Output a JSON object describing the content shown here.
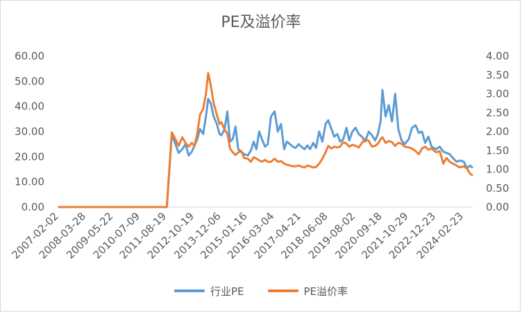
{
  "colors": {
    "series_1": "#5b9bd5",
    "series_2": "#ed7d31",
    "axis": "#d9d9d9",
    "text": "#595959"
  },
  "chart_data": {
    "type": "line",
    "title": "PE及溢价率",
    "xlabel": "",
    "ylabel": "",
    "ylim": [
      0,
      60
    ],
    "y2lim": [
      0,
      4
    ],
    "grid": false,
    "legend_position": "bottom",
    "y_ticks": [
      "0.00",
      "10.00",
      "20.00",
      "30.00",
      "40.00",
      "50.00",
      "60.00"
    ],
    "y2_ticks": [
      "0.00",
      "0.50",
      "1.00",
      "1.50",
      "2.00",
      "2.50",
      "3.00",
      "3.50",
      "4.00"
    ],
    "x_ticks": [
      "2007-02-02",
      "2008-03-28",
      "2009-05-22",
      "2010-07-09",
      "2011-08-19",
      "2012-10-19",
      "2013-12-06",
      "2015-01-16",
      "2016-03-04",
      "2017-04-21",
      "2018-06-08",
      "2019-08-02",
      "2020-09-18",
      "2021-10-29",
      "2022-12-23",
      "2024-02-23"
    ],
    "x": [
      "2007-02-02",
      "2008-03-28",
      "2009-05-22",
      "2010-07-09",
      "2011-08-19",
      "2011-11-04",
      "2011-12-30",
      "2012-02-17",
      "2012-04-13",
      "2012-06-01",
      "2012-07-20",
      "2012-09-07",
      "2012-10-19",
      "2012-11-30",
      "2013-01-11",
      "2013-03-01",
      "2013-04-12",
      "2013-05-17",
      "2013-06-28",
      "2013-08-09",
      "2013-09-27",
      "2013-11-08",
      "2013-12-06",
      "2014-01-24",
      "2014-03-07",
      "2014-04-18",
      "2014-05-30",
      "2014-07-11",
      "2014-08-22",
      "2014-10-10",
      "2014-11-21",
      "2015-01-16",
      "2015-03-06",
      "2015-04-17",
      "2015-05-29",
      "2015-07-10",
      "2015-08-21",
      "2015-10-09",
      "2015-11-20",
      "2016-01-08",
      "2016-03-04",
      "2016-04-22",
      "2016-06-10",
      "2016-07-29",
      "2016-09-09",
      "2016-10-28",
      "2016-12-09",
      "2017-01-20",
      "2017-03-10",
      "2017-04-21",
      "2017-06-09",
      "2017-07-21",
      "2017-09-01",
      "2017-10-20",
      "2017-12-01",
      "2018-01-19",
      "2018-03-09",
      "2018-04-27",
      "2018-06-08",
      "2018-07-27",
      "2018-09-07",
      "2018-10-26",
      "2018-12-07",
      "2019-01-25",
      "2019-03-15",
      "2019-04-26",
      "2019-06-14",
      "2019-08-02",
      "2019-09-20",
      "2019-11-08",
      "2019-12-27",
      "2020-02-21",
      "2020-04-10",
      "2020-05-29",
      "2020-07-10",
      "2020-08-21",
      "2020-09-18",
      "2020-11-06",
      "2020-12-25",
      "2021-02-12",
      "2021-04-02",
      "2021-05-21",
      "2021-07-09",
      "2021-08-27",
      "2021-10-29",
      "2021-12-17",
      "2022-02-11",
      "2022-04-01",
      "2022-05-20",
      "2022-07-08",
      "2022-08-26",
      "2022-10-14",
      "2022-12-23",
      "2023-02-17",
      "2023-04-14",
      "2023-06-02",
      "2023-07-21",
      "2023-09-08",
      "2023-11-03",
      "2023-12-22",
      "2024-02-23",
      "2024-04-12",
      "2024-05-31",
      "2024-06-28"
    ],
    "series": [
      {
        "name": "行业PE",
        "axis": "left",
        "values": [
          0,
          0,
          0,
          0,
          0,
          29,
          25,
          21.5,
          23,
          25,
          20.5,
          22,
          24.5,
          27,
          31,
          29,
          36,
          43,
          41,
          36,
          33,
          29,
          28.5,
          31,
          38,
          26,
          27,
          32,
          23,
          22,
          21,
          20.5,
          22.5,
          26,
          23,
          30,
          27,
          24,
          25,
          36,
          38,
          30,
          33,
          23,
          26,
          25,
          24,
          23.5,
          25,
          24,
          23,
          24.5,
          23,
          25.5,
          23.5,
          30,
          26,
          33,
          34.5,
          31,
          28,
          29,
          26,
          27,
          31.5,
          26.5,
          30,
          31.5,
          29,
          28,
          26,
          30,
          28.5,
          26.5,
          29,
          34,
          46.5,
          36,
          40.5,
          34,
          45,
          31,
          26.5,
          25,
          27,
          31.5,
          32.5,
          29.5,
          30,
          25.5,
          28,
          24,
          23,
          24,
          22,
          21.5,
          21,
          19.5,
          18,
          18.5,
          18,
          15.5,
          16.5,
          15.8
        ]
      },
      {
        "name": "PE溢价率",
        "axis": "right",
        "values": [
          0,
          0,
          0,
          0,
          0,
          1.98,
          1.8,
          1.62,
          1.85,
          1.7,
          1.6,
          1.7,
          1.62,
          1.95,
          2.45,
          2.6,
          3.0,
          3.55,
          3.2,
          2.75,
          2.45,
          2.2,
          2.25,
          2.05,
          1.95,
          1.55,
          1.45,
          1.38,
          1.45,
          1.48,
          1.3,
          1.28,
          1.2,
          1.32,
          1.28,
          1.24,
          1.2,
          1.25,
          1.2,
          1.2,
          1.28,
          1.2,
          1.22,
          1.15,
          1.12,
          1.1,
          1.08,
          1.08,
          1.1,
          1.07,
          1.05,
          1.1,
          1.08,
          1.05,
          1.06,
          1.15,
          1.28,
          1.45,
          1.62,
          1.55,
          1.6,
          1.58,
          1.6,
          1.72,
          1.68,
          1.6,
          1.65,
          1.62,
          1.58,
          1.7,
          1.8,
          1.75,
          1.6,
          1.62,
          1.68,
          1.8,
          1.85,
          1.7,
          1.75,
          1.72,
          1.62,
          1.7,
          1.68,
          1.6,
          1.58,
          1.55,
          1.48,
          1.4,
          1.55,
          1.6,
          1.52,
          1.55,
          1.45,
          1.48,
          1.15,
          1.3,
          1.2,
          1.15,
          1.1,
          1.05,
          1.08,
          1.02,
          0.88,
          0.85
        ]
      }
    ]
  }
}
